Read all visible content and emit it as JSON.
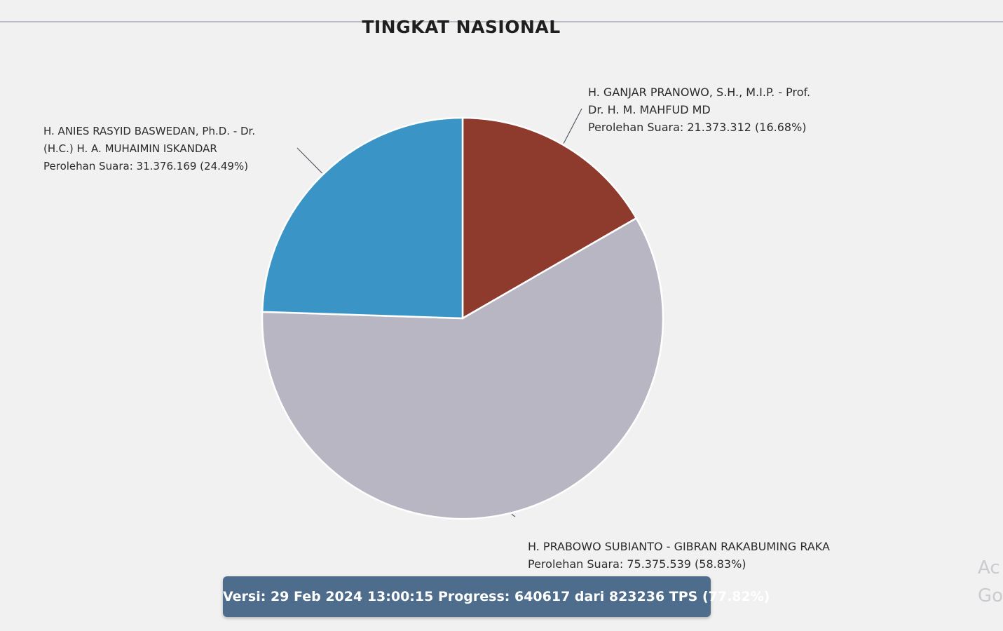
{
  "chart_data": {
    "type": "pie",
    "title": "TINGKAT NASIONAL",
    "slices": [
      {
        "key": "ganjar",
        "name_lines": [
          "H. GANJAR PRANOWO, S.H., M.I.P. - Prof.",
          "Dr. H. M. MAHFUD MD"
        ],
        "vote_text": "Perolehan Suara: 21.373.312 (16.68%)",
        "votes": 21373312,
        "percent": 16.68,
        "color": "#8e3a2c"
      },
      {
        "key": "prabowo",
        "name_lines": [
          "H. PRABOWO SUBIANTO - GIBRAN RAKABUMING RAKA"
        ],
        "vote_text": "Perolehan Suara: 75.375.539 (58.83%)",
        "votes": 75375539,
        "percent": 58.83,
        "color": "#b7b6c2"
      },
      {
        "key": "anies",
        "name_lines": [
          "H. ANIES RASYID BASWEDAN, Ph.D. - Dr.",
          "(H.C.) H. A. MUHAIMIN ISKANDAR"
        ],
        "vote_text": "Perolehan Suara: 31.376.169 (24.49%)",
        "votes": 31376169,
        "percent": 24.49,
        "color": "#3a95c6"
      }
    ]
  },
  "footer": {
    "version_text": "Versi: 29 Feb 2024 13:00:15 Progress: 640617 dari 823236 TPS (77.82%)"
  },
  "edge_watermark": {
    "line1": "Ac",
    "line2": "Go"
  }
}
